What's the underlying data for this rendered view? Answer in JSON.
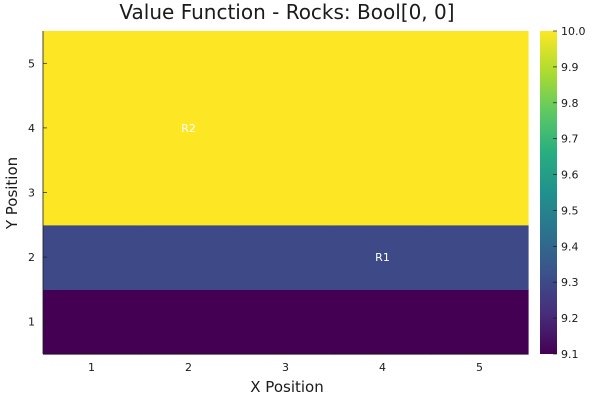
{
  "chart_data": {
    "type": "heatmap",
    "title": "Value Function - Rocks: Bool[0, 0]",
    "xlabel": "X Position",
    "ylabel": "Y Position",
    "x_ticks": [
      "1",
      "2",
      "3",
      "4",
      "5"
    ],
    "y_ticks": [
      "1",
      "2",
      "3",
      "4",
      "5"
    ],
    "xlim": [
      0.5,
      5.5
    ],
    "ylim": [
      0.5,
      5.5
    ],
    "grid": false,
    "colormap": "viridis",
    "colorbar": {
      "range": [
        9.1,
        10.0
      ],
      "ticks": [
        "9.1",
        "9.2",
        "9.3",
        "9.4",
        "9.5",
        "9.6",
        "9.7",
        "9.8",
        "9.9",
        "10.0"
      ]
    },
    "rows_by_y": [
      {
        "y": 1,
        "values": [
          9.1,
          9.1,
          9.1,
          9.1,
          9.1
        ]
      },
      {
        "y": 2,
        "values": [
          9.3,
          9.3,
          9.3,
          9.3,
          9.3
        ]
      },
      {
        "y": 3,
        "values": [
          10.0,
          10.0,
          10.0,
          10.0,
          10.0
        ]
      },
      {
        "y": 4,
        "values": [
          10.0,
          10.0,
          10.0,
          10.0,
          10.0
        ]
      },
      {
        "y": 5,
        "values": [
          10.0,
          10.0,
          10.0,
          10.0,
          10.0
        ]
      }
    ],
    "annotations": [
      {
        "text": "R1",
        "x": 4,
        "y": 2
      },
      {
        "text": "R2",
        "x": 2,
        "y": 4
      }
    ]
  }
}
